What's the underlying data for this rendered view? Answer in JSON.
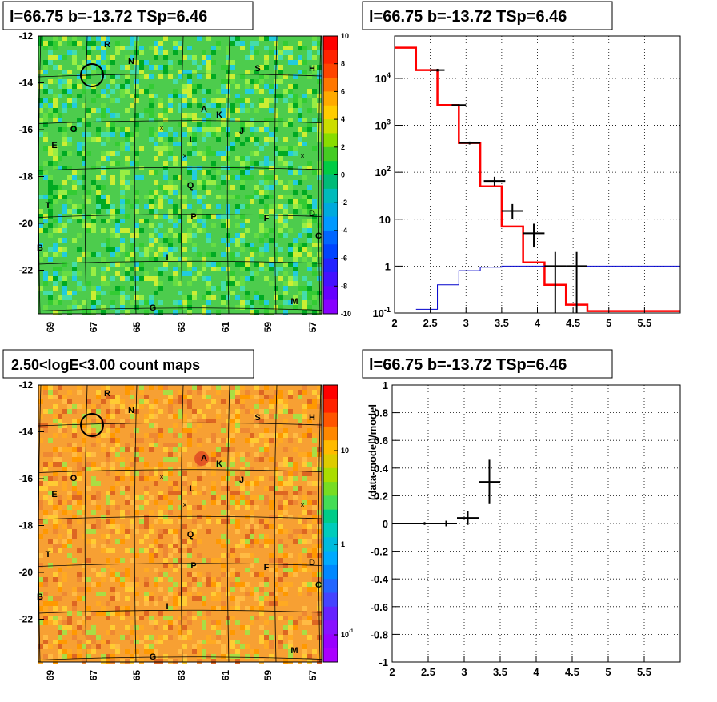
{
  "panels": {
    "tl_title": "l=66.75 b=-13.72 TSp=6.46",
    "tr_title": "l=66.75 b=-13.72 TSp=6.46",
    "bl_title": "2.50<logE<3.00 count maps",
    "br_title": "l=66.75 b=-13.72 TSp=6.46"
  },
  "chart_data": [
    {
      "type": "heatmap",
      "panel": "top-left",
      "title": "l=66.75 b=-13.72 TSp=6.46",
      "x_ticks": [
        "69",
        "67",
        "65",
        "63",
        "61",
        "59",
        "57"
      ],
      "y_ticks": [
        "-12",
        "-14",
        "-16",
        "-18",
        "-20",
        "-22"
      ],
      "colorbar_ticks": [
        "10",
        "8",
        "6",
        "4",
        "2",
        "0",
        "-2",
        "-4",
        "-6",
        "-8",
        "-10"
      ],
      "colorbar_range": [
        -10,
        10
      ],
      "colors": [
        "#00aa22",
        "#33cc33",
        "#66dd44",
        "#99ee44",
        "#ccee33",
        "#44ddaa",
        "#22ccdd"
      ],
      "source_labels": [
        "R",
        "N",
        "S",
        "H",
        "A",
        "K",
        "O",
        "J",
        "E",
        "L",
        "Q",
        "T",
        "P",
        "F",
        "D",
        "C",
        "B",
        "I",
        "G",
        "M"
      ]
    },
    {
      "type": "line",
      "panel": "top-right",
      "title": "l=66.75 b=-13.72 TSp=6.46",
      "y_scale": "log",
      "xlim": [
        2,
        6
      ],
      "ylim": [
        0.1,
        80000
      ],
      "x_ticks": [
        "2",
        "2.5",
        "3",
        "3.5",
        "4",
        "4.5",
        "5",
        "5.5"
      ],
      "y_ticks": [
        "10^-1",
        "1",
        "10",
        "10^2",
        "10^3",
        "10^4"
      ],
      "grid": true,
      "series": [
        {
          "role": "model",
          "color": "#ff0000",
          "edges": [
            2.0,
            2.3,
            2.6,
            2.9,
            3.2,
            3.5,
            3.8,
            4.1,
            4.4,
            4.7,
            6.0
          ],
          "values": [
            45000,
            15000,
            2700,
            420,
            50,
            7,
            1.2,
            0.4,
            0.15,
            0.11
          ]
        },
        {
          "role": "background",
          "color": "#0000cc",
          "edges": [
            2.3,
            2.6,
            2.9,
            3.2,
            3.5,
            3.8,
            6.0
          ],
          "values": [
            0.12,
            0.4,
            0.8,
            0.95,
            1.0,
            1.0
          ]
        },
        {
          "role": "data",
          "color": "#000000",
          "points": [
            {
              "x": 2.6,
              "y": 15000,
              "xerr": 0.1,
              "ylo": 14000,
              "yhi": 16000
            },
            {
              "x": 2.9,
              "y": 2700,
              "xerr": 0.1,
              "ylo": 2600,
              "yhi": 2800
            },
            {
              "x": 3.05,
              "y": 420,
              "xerr": 0.15,
              "ylo": 390,
              "yhi": 450
            },
            {
              "x": 3.4,
              "y": 65,
              "xerr": 0.15,
              "ylo": 52,
              "yhi": 80
            },
            {
              "x": 3.65,
              "y": 15,
              "xerr": 0.15,
              "ylo": 10,
              "yhi": 21
            },
            {
              "x": 3.95,
              "y": 5,
              "xerr": 0.15,
              "ylo": 2.5,
              "yhi": 8
            },
            {
              "x": 4.25,
              "y": 1,
              "xerr": 0.15,
              "ylo": 0.1,
              "yhi": 2
            },
            {
              "x": 4.55,
              "y": 1,
              "xerr": 0.15,
              "ylo": 0.1,
              "yhi": 2
            }
          ]
        }
      ]
    },
    {
      "type": "heatmap",
      "panel": "bottom-left",
      "title": "2.50<logE<3.00 count maps",
      "x_ticks": [
        "69",
        "67",
        "65",
        "63",
        "61",
        "59",
        "57"
      ],
      "y_ticks": [
        "-12",
        "-14",
        "-16",
        "-18",
        "-20",
        "-22"
      ],
      "colorbar_ticks": [
        "10",
        "1",
        "10^-1"
      ],
      "colorbar_scale": "log",
      "colors": [
        "#ff9900",
        "#ffaa22",
        "#ee8833",
        "#ffcc33",
        "#dd6622",
        "#ffbb44",
        "#aadd44"
      ],
      "source_labels": [
        "R",
        "N",
        "S",
        "H",
        "A",
        "K",
        "O",
        "J",
        "E",
        "L",
        "Q",
        "T",
        "P",
        "F",
        "D",
        "C",
        "B",
        "I",
        "G",
        "M"
      ]
    },
    {
      "type": "scatter",
      "panel": "bottom-right",
      "title": "l=66.75 b=-13.72 TSp=6.46",
      "ylabel": "(data-model)/model",
      "xlim": [
        2,
        6
      ],
      "ylim": [
        -1,
        1
      ],
      "x_ticks": [
        "2",
        "2.5",
        "3",
        "3.5",
        "4",
        "4.5",
        "5",
        "5.5"
      ],
      "y_ticks": [
        "1",
        "0.8",
        "0.6",
        "0.4",
        "0.2",
        "0",
        "-0.2",
        "-0.4",
        "-0.6",
        "-0.8",
        "-1"
      ],
      "grid": true,
      "points": [
        {
          "x": 2.15,
          "y": 0.0,
          "xerr": 0.15,
          "yerr": 0.005
        },
        {
          "x": 2.45,
          "y": 0.0,
          "xerr": 0.15,
          "yerr": 0.01
        },
        {
          "x": 2.75,
          "y": 0.0,
          "xerr": 0.15,
          "yerr": 0.02
        },
        {
          "x": 3.05,
          "y": 0.04,
          "xerr": 0.15,
          "yerr": 0.05
        },
        {
          "x": 3.35,
          "y": 0.3,
          "xerr": 0.15,
          "yerr": 0.16
        }
      ]
    }
  ]
}
